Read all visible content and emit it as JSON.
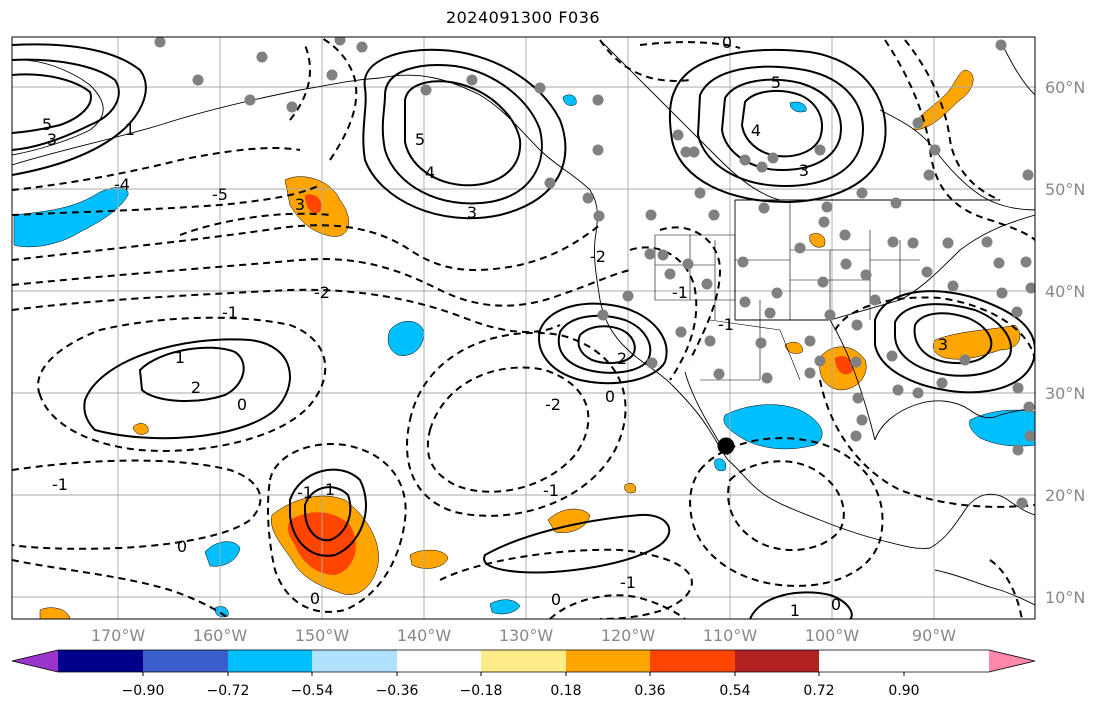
{
  "title": "2024091300 F036",
  "lat_labels": [
    "60°N",
    "50°N",
    "40°N",
    "30°N",
    "20°N",
    "10°N"
  ],
  "lon_labels": [
    "170°W",
    "160°W",
    "150°W",
    "140°W",
    "130°W",
    "120°W",
    "110°W",
    "100°W",
    "90°W"
  ],
  "colorbar": {
    "colors": [
      "#9a35cc",
      "#00008b",
      "#3a5fcd",
      "#00bfff",
      "#b0e2ff",
      "#ffffff",
      "#ffec8b",
      "#ffa500",
      "#ff4500",
      "#b22222",
      "#ff88aa"
    ],
    "tick_labels": [
      "−0.90",
      "−0.72",
      "−0.54",
      "−0.36",
      "−0.18",
      "0.18",
      "0.36",
      "0.54",
      "0.72",
      "0.90"
    ]
  },
  "contour_labels": {
    "pos": [
      "5",
      "3",
      "1",
      "2",
      "5",
      "4",
      "3",
      "5",
      "4",
      "3",
      "2",
      "1",
      "3",
      "1",
      "1",
      "3"
    ],
    "neg": [
      "-4",
      "-5",
      "-2",
      "-1",
      "0",
      "-1",
      "-2",
      "0",
      "-1",
      "0",
      "-1",
      "-2",
      "-1",
      "-1",
      "0",
      "0",
      "-1",
      "0",
      "0",
      "-4"
    ],
    "shade": [
      "3"
    ]
  },
  "map_layers": {
    "land": "continental North America coastline",
    "borders": "US state and Mexico state boundaries",
    "gridlines": "10 degree lat/lon"
  }
}
